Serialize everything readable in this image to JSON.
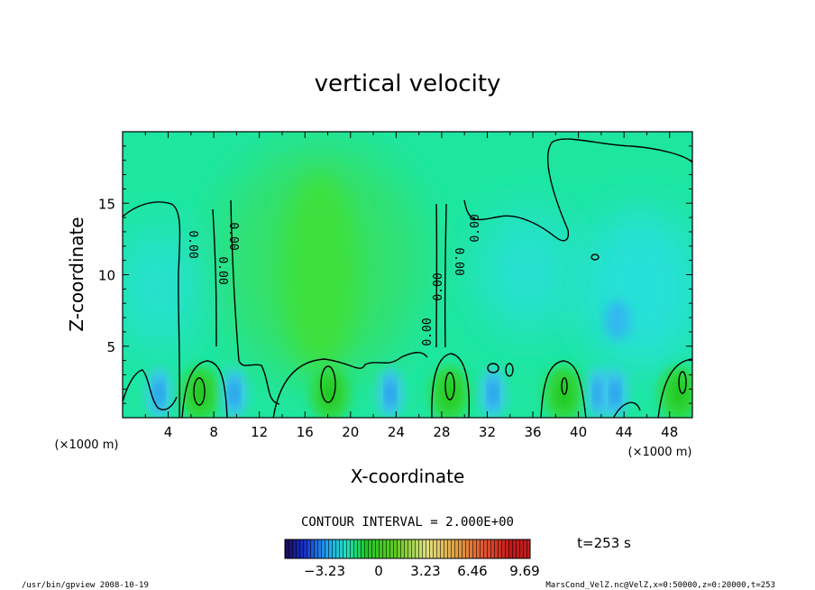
{
  "chart_data": {
    "type": "heatmap",
    "title": "vertical velocity",
    "xlabel": "X-coordinate",
    "ylabel": "Z-coordinate",
    "x_unit": "(×1000 m)",
    "z_unit": "(×1000 m)",
    "xlim": [
      0,
      50
    ],
    "ylim": [
      0,
      20
    ],
    "x_ticks": [
      4,
      8,
      12,
      16,
      20,
      24,
      28,
      32,
      36,
      40,
      44,
      48
    ],
    "y_ticks": [
      5,
      10,
      15
    ],
    "contour_interval": "CONTOUR INTERVAL = 2.000E+00",
    "contour_labels": [
      "0.00"
    ],
    "colorbar": {
      "ticks": [
        "−3.23",
        "0",
        "3.23",
        "6.46",
        "9.69"
      ]
    },
    "time_label": "t=253 s",
    "updraft_cores_x": [
      6.8,
      18.2,
      28.7,
      38.7,
      48.8
    ],
    "downdraft_cores_x": [
      3.2,
      9.8,
      23.5,
      32.5,
      41.8,
      43.2
    ]
  },
  "footer": {
    "left": "/usr/bin/gpview  2008-10-19",
    "right": "MarsCond_VelZ.nc@VelZ,x=0:50000,z=0:20000,t=253"
  },
  "colors": {
    "background_field": "#1ee6a0",
    "updraft": "#22dd22",
    "downdraft": "#2aa8f0",
    "contour": "#000000"
  }
}
